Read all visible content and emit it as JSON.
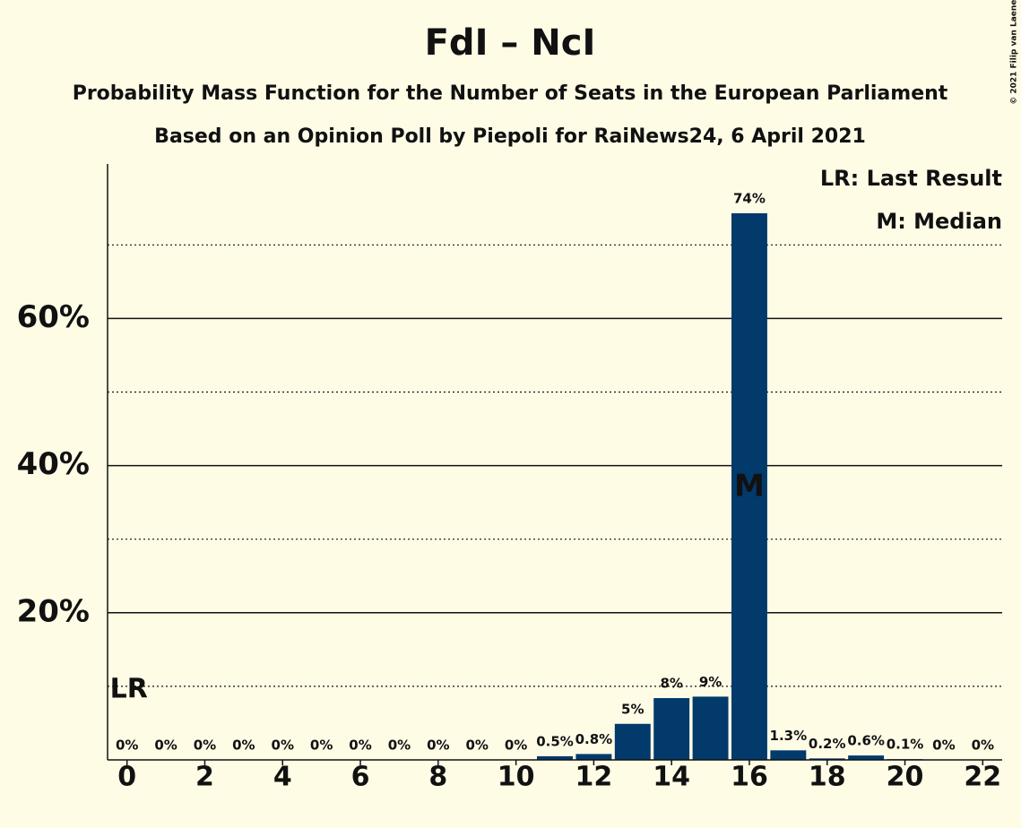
{
  "chart_data": {
    "type": "bar",
    "title": "FdI – NcI",
    "subtitle": [
      "Probability Mass Function for the Number of Seats in the European Parliament",
      "Based on an Opinion Poll by Piepoli for RaiNews24, 6 April 2021"
    ],
    "x": [
      0,
      1,
      2,
      3,
      4,
      5,
      6,
      7,
      8,
      9,
      10,
      11,
      12,
      13,
      14,
      15,
      16,
      17,
      18,
      19,
      20,
      21,
      22
    ],
    "values": [
      0,
      0,
      0,
      0,
      0,
      0,
      0,
      0,
      0,
      0,
      0,
      0.5,
      0.8,
      4.9,
      8.4,
      8.6,
      74.3,
      1.3,
      0.2,
      0.6,
      0.1,
      0,
      0
    ],
    "value_labels": [
      "0%",
      "0%",
      "0%",
      "0%",
      "0%",
      "0%",
      "0%",
      "0%",
      "0%",
      "0%",
      "0%",
      "0.5%",
      "0.8%",
      "5%",
      "8%",
      "9%",
      "74%",
      "1.3%",
      "0.2%",
      "0.6%",
      "0.1%",
      "0%",
      "0%"
    ],
    "color": "#023a6b",
    "xlim": [
      -0.5,
      22.5
    ],
    "xticks": [
      0,
      2,
      4,
      6,
      8,
      10,
      12,
      14,
      16,
      18,
      20,
      22
    ],
    "ylim": [
      0,
      81
    ],
    "yticks": [
      {
        "value": 20,
        "label": "20%"
      },
      {
        "value": 40,
        "label": "40%"
      },
      {
        "value": 60,
        "label": "60%"
      }
    ],
    "minor_yticks": [
      10,
      30,
      50,
      70
    ],
    "grid": true,
    "annotations": [
      {
        "x": 0,
        "y": 9.5,
        "label": "LR"
      },
      {
        "x": 16,
        "y": 37,
        "label": "M"
      }
    ],
    "legend": [
      "LR: Last Result",
      "M: Median"
    ],
    "legend_position": "top-right",
    "copyright": "© 2021 Filip van Laenen"
  }
}
